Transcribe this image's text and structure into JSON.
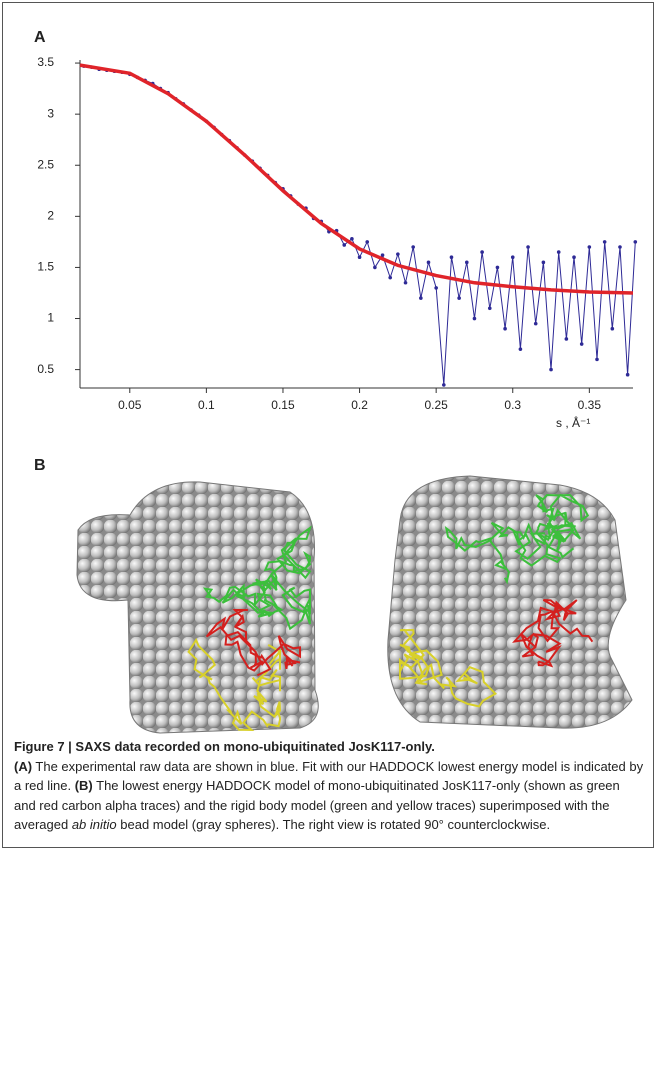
{
  "panel_labels": [
    "A",
    "B"
  ],
  "chart_data": {
    "type": "line",
    "x_label": "s , Å⁻¹",
    "xlim": [
      0.0175,
      0.3785
    ],
    "ylim": [
      0.32,
      3.53
    ],
    "xticks": [
      0.05,
      0.1,
      0.15,
      0.2,
      0.25,
      0.3,
      0.35
    ],
    "yticks": [
      0.5,
      1,
      1.5,
      2,
      2.5,
      3,
      3.5
    ],
    "series": [
      {
        "color": "#2e2a96",
        "markers": true,
        "x": [
          0.02,
          0.025,
          0.03,
          0.035,
          0.04,
          0.045,
          0.05,
          0.055,
          0.06,
          0.065,
          0.07,
          0.075,
          0.08,
          0.085,
          0.09,
          0.095,
          0.1,
          0.105,
          0.11,
          0.115,
          0.12,
          0.125,
          0.13,
          0.135,
          0.14,
          0.145,
          0.15,
          0.155,
          0.16,
          0.165,
          0.17,
          0.175,
          0.18,
          0.185,
          0.19,
          0.195,
          0.2,
          0.205,
          0.21,
          0.215,
          0.22,
          0.225,
          0.23,
          0.235,
          0.24,
          0.245,
          0.25,
          0.255,
          0.26,
          0.265,
          0.27,
          0.275,
          0.28,
          0.285,
          0.29,
          0.295,
          0.3,
          0.305,
          0.31,
          0.315,
          0.32,
          0.325,
          0.33,
          0.335,
          0.34,
          0.345,
          0.35,
          0.355,
          0.36,
          0.365,
          0.37,
          0.375,
          0.38
        ],
        "values": [
          3.47,
          3.46,
          3.44,
          3.43,
          3.42,
          3.41,
          3.39,
          3.36,
          3.33,
          3.3,
          3.25,
          3.21,
          3.15,
          3.1,
          3.04,
          2.99,
          2.93,
          2.87,
          2.8,
          2.74,
          2.67,
          2.6,
          2.54,
          2.47,
          2.4,
          2.33,
          2.27,
          2.2,
          2.12,
          2.08,
          1.98,
          1.95,
          1.85,
          1.86,
          1.72,
          1.78,
          1.6,
          1.75,
          1.5,
          1.62,
          1.4,
          1.63,
          1.35,
          1.7,
          1.2,
          1.55,
          1.3,
          0.35,
          1.6,
          1.2,
          1.55,
          1.0,
          1.65,
          1.1,
          1.5,
          0.9,
          1.6,
          0.7,
          1.7,
          0.95,
          1.55,
          0.5,
          1.65,
          0.8,
          1.6,
          0.75,
          1.7,
          0.6,
          1.75,
          0.9,
          1.7,
          0.45,
          1.75
        ]
      },
      {
        "color": "#e0242a",
        "markers": false,
        "x": [
          0.0175,
          0.05,
          0.075,
          0.1,
          0.125,
          0.15,
          0.175,
          0.2,
          0.225,
          0.25,
          0.275,
          0.3,
          0.325,
          0.35,
          0.3785
        ],
        "values": [
          3.48,
          3.4,
          3.2,
          2.93,
          2.6,
          2.25,
          1.93,
          1.68,
          1.52,
          1.42,
          1.35,
          1.31,
          1.28,
          1.26,
          1.25
        ]
      }
    ]
  },
  "caption": {
    "title": "Figure 7 | SAXS data recorded on mono-ubiquitinated JosK117-only.",
    "parts": [
      "(A)",
      " The experimental raw data are shown in blue. Fit with our HADDOCK lowest energy model is indicated by a red line. ",
      "(B)",
      " The lowest energy HADDOCK model of mono-ubiquitinated JosK117-only (shown as green and red carbon alpha traces) and the rigid body model (green and yellow traces) superimposed with the averaged ",
      "ab initio",
      " bead model (gray spheres). The right view is rotated 90° counterclockwise."
    ]
  }
}
